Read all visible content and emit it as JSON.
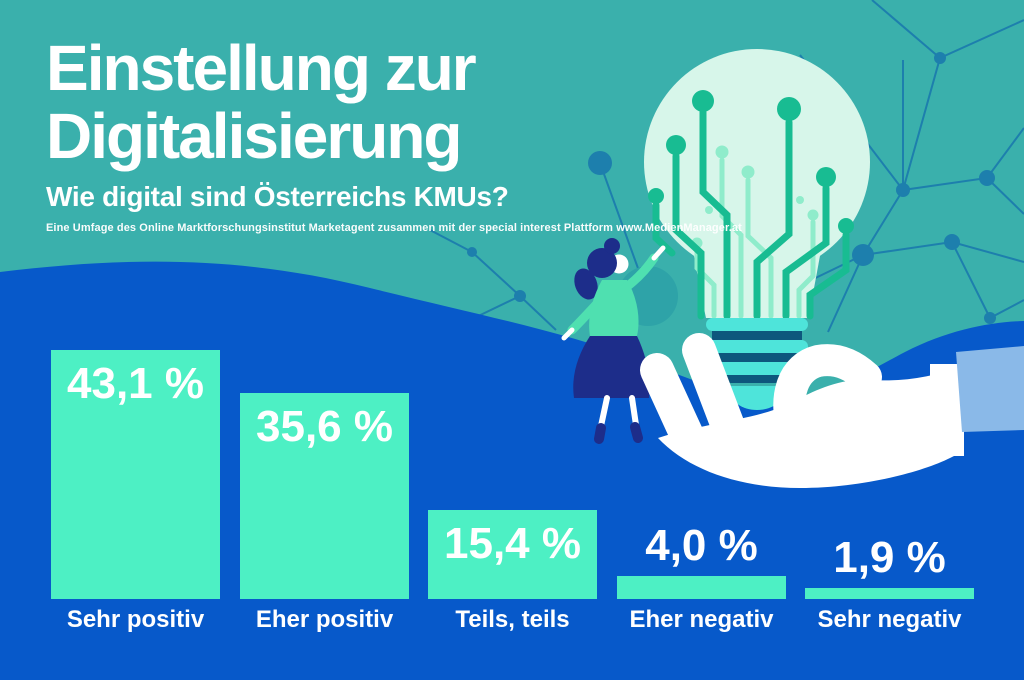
{
  "header": {
    "title_line1": "Einstellung zur",
    "title_line2": "Digitalisierung",
    "subtitle": "Wie digital sind Österreichs KMUs?",
    "source": "Eine Umfage des Online Marktforschungsinstitut Marketagent zusammen mit der special interest Plattform www.MedienManager.at"
  },
  "chart_data": {
    "type": "bar",
    "title": "Einstellung zur Digitalisierung",
    "xlabel": "",
    "ylabel": "",
    "unit": "%",
    "categories": [
      "Sehr positiv",
      "Eher positiv",
      "Teils, teils",
      "Eher negativ",
      "Sehr negativ"
    ],
    "values": [
      43.1,
      35.6,
      15.4,
      4.0,
      1.9
    ],
    "value_labels": [
      "43,1 %",
      "35,6 %",
      "15,4 %",
      "4,0 %",
      "1,9 %"
    ],
    "ylim": [
      0,
      45
    ],
    "grid": false,
    "legend": "none",
    "bar_color": "#4df0c4",
    "label_color": "#ffffff"
  },
  "illustration": {
    "icons": [
      "lightbulb-icon",
      "circuit-tree-icon",
      "network-pattern",
      "walking-woman-figure",
      "open-hand-icon"
    ]
  },
  "colors": {
    "teal": "#3ab0ac",
    "blue": "#0759ca",
    "mint": "#4df0c4",
    "pale": "#d7f6ea",
    "circuit": "#18bc92",
    "circuit_light": "#8feccb",
    "cyan": "#4ee4da",
    "dark_teal": "#0d577d",
    "net": "#1d7fad",
    "navy": "#1d2d8a",
    "woman_mint": "#4fe0b0",
    "sleeve": "#8ab9e8",
    "circle_teal": "#2ea3a8",
    "white": "#ffffff"
  }
}
